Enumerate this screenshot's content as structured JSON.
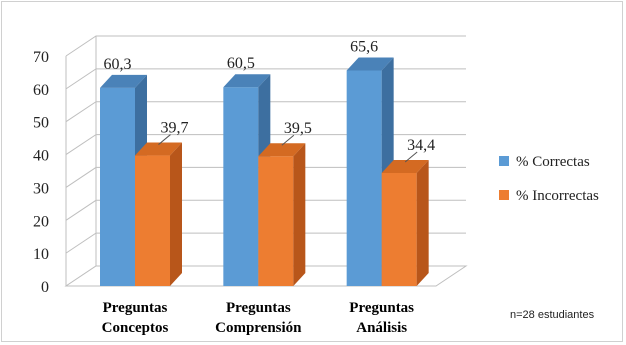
{
  "chart_data": {
    "type": "bar",
    "categories": [
      [
        "Preguntas",
        "Conceptos"
      ],
      [
        "Preguntas",
        "Comprensión"
      ],
      [
        "Preguntas",
        "Análisis"
      ]
    ],
    "series": [
      {
        "name": "% Correctas",
        "values": [
          60.3,
          60.5,
          65.6
        ],
        "labels": [
          "60,3",
          "60,5",
          "65,6"
        ],
        "color": "#5b9bd5",
        "top": "#4a82b8",
        "side": "#3d6fa0"
      },
      {
        "name": "% Incorrectas",
        "values": [
          39.7,
          39.5,
          34.4
        ],
        "labels": [
          "39,7",
          "39,5",
          "34,4"
        ],
        "color": "#ed7d31",
        "top": "#d46a22",
        "side": "#b8561a"
      }
    ],
    "ylim": [
      0,
      70
    ],
    "yticks": [
      0,
      10,
      20,
      30,
      40,
      50,
      60,
      70
    ],
    "grid": true,
    "legend_position": "right",
    "note": "n=28 estudiantes"
  }
}
